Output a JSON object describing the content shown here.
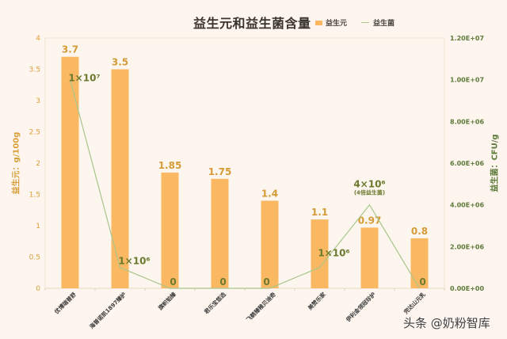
{
  "title": "益生元和益生菌含量",
  "legend": [
    {
      "label": "益生元",
      "type": "bar",
      "color": "#fbb862"
    },
    {
      "label": "益生菌",
      "type": "line",
      "color": "#a9c58b"
    }
  ],
  "left_axis": {
    "title": "益生元：g/100g",
    "ticks": [
      "0",
      "0.5",
      "1",
      "1.5",
      "2",
      "2.5",
      "3",
      "3.5",
      "4"
    ],
    "color": "#d9a03a"
  },
  "right_axis": {
    "title": "益生菌：CFU/g",
    "ticks": [
      "0.00E+00",
      "2.00E+06",
      "4.00E+06",
      "6.00E+06",
      "8.00E+06",
      "1.00E+07",
      "1.20E+07"
    ],
    "color": "#5d7a3a"
  },
  "watermark": "头条 @奶粉智库",
  "chart_data": {
    "type": "bar",
    "title": "益生元和益生菌含量",
    "categories": [
      "优博瑞普舒",
      "海普诺凯1897臻护",
      "旗帜铂臻",
      "君乐宝悠选",
      "飞鹤臻稚贝迪奇",
      "美赞乐家",
      "伊利金领冠珍护",
      "完达山元乳"
    ],
    "series": [
      {
        "name": "益生元",
        "type": "bar",
        "axis": "left",
        "unit": "g/100g",
        "values": [
          3.7,
          3.5,
          1.85,
          1.75,
          1.4,
          1.1,
          0.97,
          0.8
        ],
        "labels": [
          "3.7",
          "3.5",
          "1.85",
          "1.75",
          "1.4",
          "1.1",
          "0.97",
          "0.8"
        ]
      },
      {
        "name": "益生菌",
        "type": "line",
        "axis": "right",
        "unit": "CFU/g",
        "values": [
          10000000,
          1000000,
          0,
          0,
          0,
          1000000,
          4000000,
          0
        ],
        "labels": [
          "1×10⁷",
          "1×10⁶",
          "0",
          "0",
          "0",
          "1×10⁶",
          "4×10⁶",
          "0"
        ]
      }
    ],
    "annotations": [
      {
        "category": "伊利金领冠珍护",
        "text": "(4倍益生菌)"
      }
    ],
    "xlabel": "",
    "ylabel": "益生元：g/100g",
    "y2label": "益生菌：CFU/g",
    "ylim": [
      0,
      4
    ],
    "y2lim": [
      0,
      12000000
    ],
    "grid": false,
    "legend_position": "top-right of title"
  }
}
